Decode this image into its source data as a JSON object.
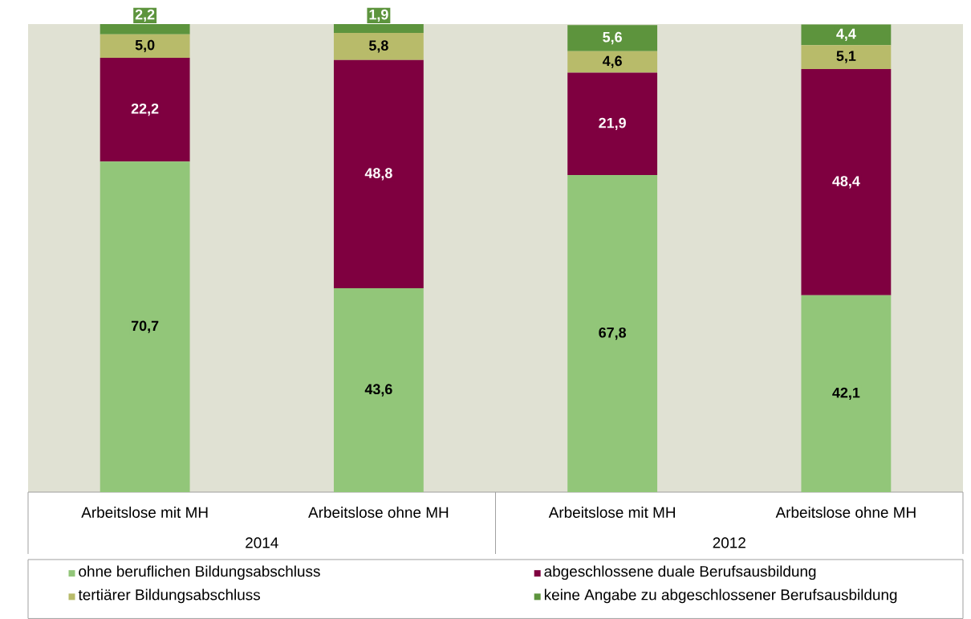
{
  "chart_data": {
    "type": "bar",
    "stacked": true,
    "categories": [
      "Arbeitslose mit MH",
      "Arbeitslose  ohne MH",
      "Arbeitslose mit MH",
      "Arbeitslose  ohne MH"
    ],
    "annotations": [
      "2014",
      "2012"
    ],
    "ylim": [
      0,
      100.1
    ],
    "tick_labels": "x",
    "legend": "bottom",
    "series": [
      {
        "name": "ohne beruflichen Bildungsabschluss",
        "color": "#92c679",
        "values": [
          70.7,
          43.6,
          67.8,
          42.1
        ],
        "value_labels": [
          "70,7",
          "43,6",
          "67,8",
          "42,1"
        ]
      },
      {
        "name": "abgeschlossene duale Berufsausbildung",
        "color": "#7f0040",
        "values": [
          22.2,
          48.8,
          21.9,
          48.4
        ],
        "value_labels": [
          "22,2",
          "48,8",
          "21,9",
          "48,4"
        ]
      },
      {
        "name": "tertiärer Bildungsabschluss",
        "color": "#b8bb6a",
        "values": [
          5.0,
          5.8,
          4.6,
          5.1
        ],
        "value_labels": [
          "5,0",
          "5,8",
          "4,6",
          "5,1"
        ]
      },
      {
        "name": "keine Angabe zu abgeschlossener Berufsausbildung",
        "color": "#5d943d",
        "values": [
          2.2,
          1.9,
          5.6,
          4.4
        ],
        "value_labels": [
          "2,2",
          "1,9",
          "5,6",
          "4,4"
        ]
      }
    ]
  }
}
